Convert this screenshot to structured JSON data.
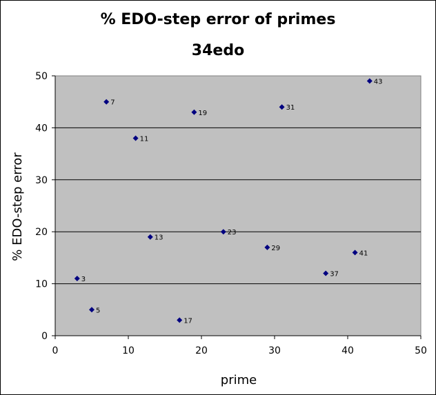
{
  "chart_data": {
    "type": "scatter",
    "title": "% EDO-step error of primes",
    "subtitle": "34edo",
    "xlabel": "prime",
    "ylabel": "% EDO-step error",
    "xlim": [
      0,
      50
    ],
    "ylim": [
      0,
      50
    ],
    "xticks": [
      0,
      10,
      20,
      30,
      40,
      50
    ],
    "yticks": [
      0,
      10,
      20,
      30,
      40,
      50
    ],
    "grid": "horizontal",
    "plot_background": "#c0c0c0",
    "marker_color": "#000080",
    "points": [
      {
        "x": 3,
        "y": 11,
        "label": "3"
      },
      {
        "x": 5,
        "y": 5,
        "label": "5"
      },
      {
        "x": 7,
        "y": 45,
        "label": "7"
      },
      {
        "x": 11,
        "y": 38,
        "label": "11"
      },
      {
        "x": 13,
        "y": 19,
        "label": "13"
      },
      {
        "x": 17,
        "y": 3,
        "label": "17"
      },
      {
        "x": 19,
        "y": 43,
        "label": "19"
      },
      {
        "x": 23,
        "y": 20,
        "label": "23"
      },
      {
        "x": 29,
        "y": 17,
        "label": "29"
      },
      {
        "x": 31,
        "y": 44,
        "label": "31"
      },
      {
        "x": 37,
        "y": 12,
        "label": "37"
      },
      {
        "x": 41,
        "y": 16,
        "label": "41"
      },
      {
        "x": 43,
        "y": 49,
        "label": "43"
      }
    ]
  }
}
